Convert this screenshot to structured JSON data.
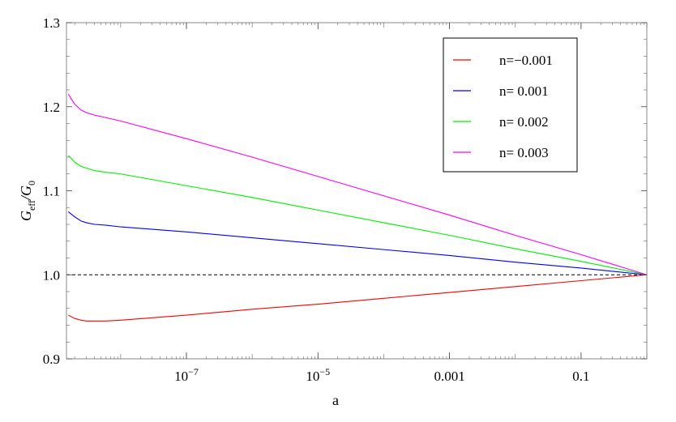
{
  "chart_data": {
    "type": "line",
    "title": "",
    "xlabel": "a",
    "ylabel": {
      "main": "G",
      "sub1": "eff",
      "sep": "/G",
      "sub2": "0"
    },
    "x_scale": "log",
    "xlim": [
      1.5e-09,
      1.0
    ],
    "ylim": [
      0.9,
      1.3
    ],
    "x_ticks": [
      {
        "value": 1e-07,
        "label": {
          "base": "10",
          "exp": "−7"
        }
      },
      {
        "value": 1e-05,
        "label": {
          "base": "10",
          "exp": "−5"
        }
      },
      {
        "value": 0.001,
        "label": {
          "base": "0.001",
          "exp": ""
        }
      },
      {
        "value": 0.1,
        "label": {
          "base": "0.1",
          "exp": ""
        }
      }
    ],
    "y_ticks": [
      {
        "value": 0.9,
        "label": "0.9"
      },
      {
        "value": 1.0,
        "label": "1.0"
      },
      {
        "value": 1.1,
        "label": "1.1"
      },
      {
        "value": 1.2,
        "label": "1.2"
      },
      {
        "value": 1.3,
        "label": "1.3"
      }
    ],
    "reference_line": {
      "y": 1.0,
      "style": "dashed",
      "color": "#000000"
    },
    "legend_position": "top-right",
    "grid": false,
    "series": [
      {
        "name": "n=−0.001",
        "color": "#ff0000",
        "x": [
          1.6e-09,
          2e-09,
          2.5e-09,
          3e-09,
          4e-09,
          6e-09,
          1e-08,
          1e-07,
          1e-06,
          1e-05,
          0.0001,
          0.001,
          0.01,
          0.1,
          1.0
        ],
        "y": [
          0.952,
          0.948,
          0.946,
          0.945,
          0.945,
          0.945,
          0.946,
          0.952,
          0.959,
          0.965,
          0.972,
          0.979,
          0.986,
          0.993,
          1.0
        ]
      },
      {
        "name": "n= 0.001",
        "color": "#0000ff",
        "x": [
          1.6e-09,
          2e-09,
          2.5e-09,
          3e-09,
          4e-09,
          6e-09,
          1e-08,
          1e-07,
          1e-06,
          1e-05,
          0.0001,
          0.001,
          0.01,
          0.1,
          1.0
        ],
        "y": [
          1.075,
          1.069,
          1.064,
          1.062,
          1.06,
          1.059,
          1.057,
          1.051,
          1.044,
          1.037,
          1.03,
          1.023,
          1.015,
          1.008,
          1.0
        ]
      },
      {
        "name": "n= 0.002",
        "color": "#00ee00",
        "x": [
          1.6e-09,
          2e-09,
          2.5e-09,
          3e-09,
          4e-09,
          6e-09,
          1e-08,
          1e-07,
          1e-06,
          1e-05,
          0.0001,
          0.001,
          0.01,
          0.1,
          1.0
        ],
        "y": [
          1.142,
          1.134,
          1.129,
          1.127,
          1.124,
          1.122,
          1.12,
          1.106,
          1.092,
          1.077,
          1.062,
          1.047,
          1.031,
          1.016,
          1.0
        ]
      },
      {
        "name": "n= 0.003",
        "color": "#ff00ff",
        "x": [
          1.6e-09,
          2e-09,
          2.5e-09,
          3e-09,
          4e-09,
          6e-09,
          1e-08,
          1e-07,
          1e-06,
          1e-05,
          0.0001,
          0.001,
          0.01,
          0.1,
          1.0
        ],
        "y": [
          1.215,
          1.203,
          1.196,
          1.193,
          1.19,
          1.187,
          1.183,
          1.162,
          1.14,
          1.117,
          1.094,
          1.071,
          1.047,
          1.024,
          1.0
        ]
      }
    ]
  }
}
